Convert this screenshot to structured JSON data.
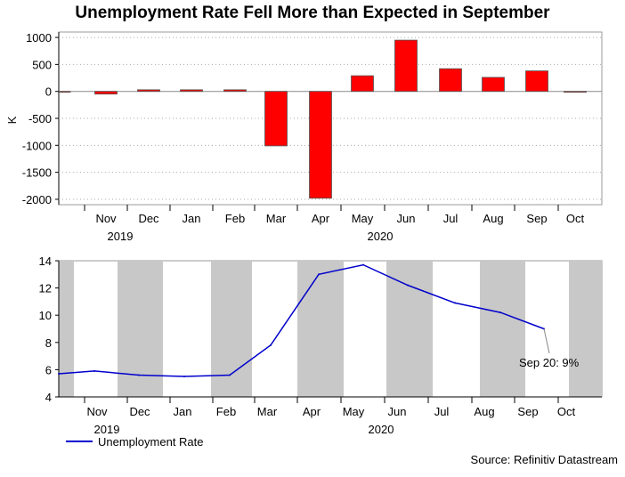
{
  "title": "Unemployment Rate Fell More than Expected in September",
  "source": "Source: Refinitiv Datastream",
  "chart_data": [
    {
      "type": "bar",
      "name": "top",
      "ylabel": "K",
      "ylim": [
        -2100,
        1100
      ],
      "yticks": [
        1000,
        500,
        0,
        -500,
        -1000,
        -1500,
        -2000
      ],
      "color": "#ff0000",
      "categories": [
        "Oct",
        "Nov",
        "Dec",
        "Jan",
        "Feb",
        "Mar",
        "Apr",
        "May",
        "Jun",
        "Jul",
        "Aug",
        "Sep",
        "Oct"
      ],
      "values": [
        -10,
        -50,
        30,
        30,
        30,
        -1010,
        -1980,
        290,
        950,
        420,
        260,
        380,
        0
      ],
      "month_labels": [
        "Nov",
        "Dec",
        "Jan",
        "Feb",
        "Mar",
        "Apr",
        "May",
        "Jun",
        "Jul",
        "Aug",
        "Sep",
        "Oct"
      ],
      "year_labels": [
        "2019",
        "2020"
      ]
    },
    {
      "type": "line",
      "name": "bottom",
      "series_name": "Unemployment Rate",
      "color": "#0000cc",
      "ylim": [
        4,
        14
      ],
      "yticks": [
        14,
        12,
        10,
        8,
        6,
        4
      ],
      "x": [
        "Oct 2019",
        "Nov 2019",
        "Dec 2019",
        "Jan 2020",
        "Feb 2020",
        "Mar 2020",
        "Apr 2020",
        "May 2020",
        "Jun 2020",
        "Jul 2020",
        "Aug 2020",
        "Sep 2020"
      ],
      "values": [
        5.7,
        5.9,
        5.6,
        5.5,
        5.6,
        7.8,
        13.0,
        13.7,
        12.2,
        10.9,
        10.2,
        9.0
      ],
      "annotation": "Sep 20: 9%",
      "month_labels": [
        "Nov",
        "Dec",
        "Jan",
        "Feb",
        "Mar",
        "Apr",
        "May",
        "Jun",
        "Jul",
        "Aug",
        "Sep",
        "Oct"
      ],
      "year_labels": [
        "2019",
        "2020"
      ]
    }
  ]
}
